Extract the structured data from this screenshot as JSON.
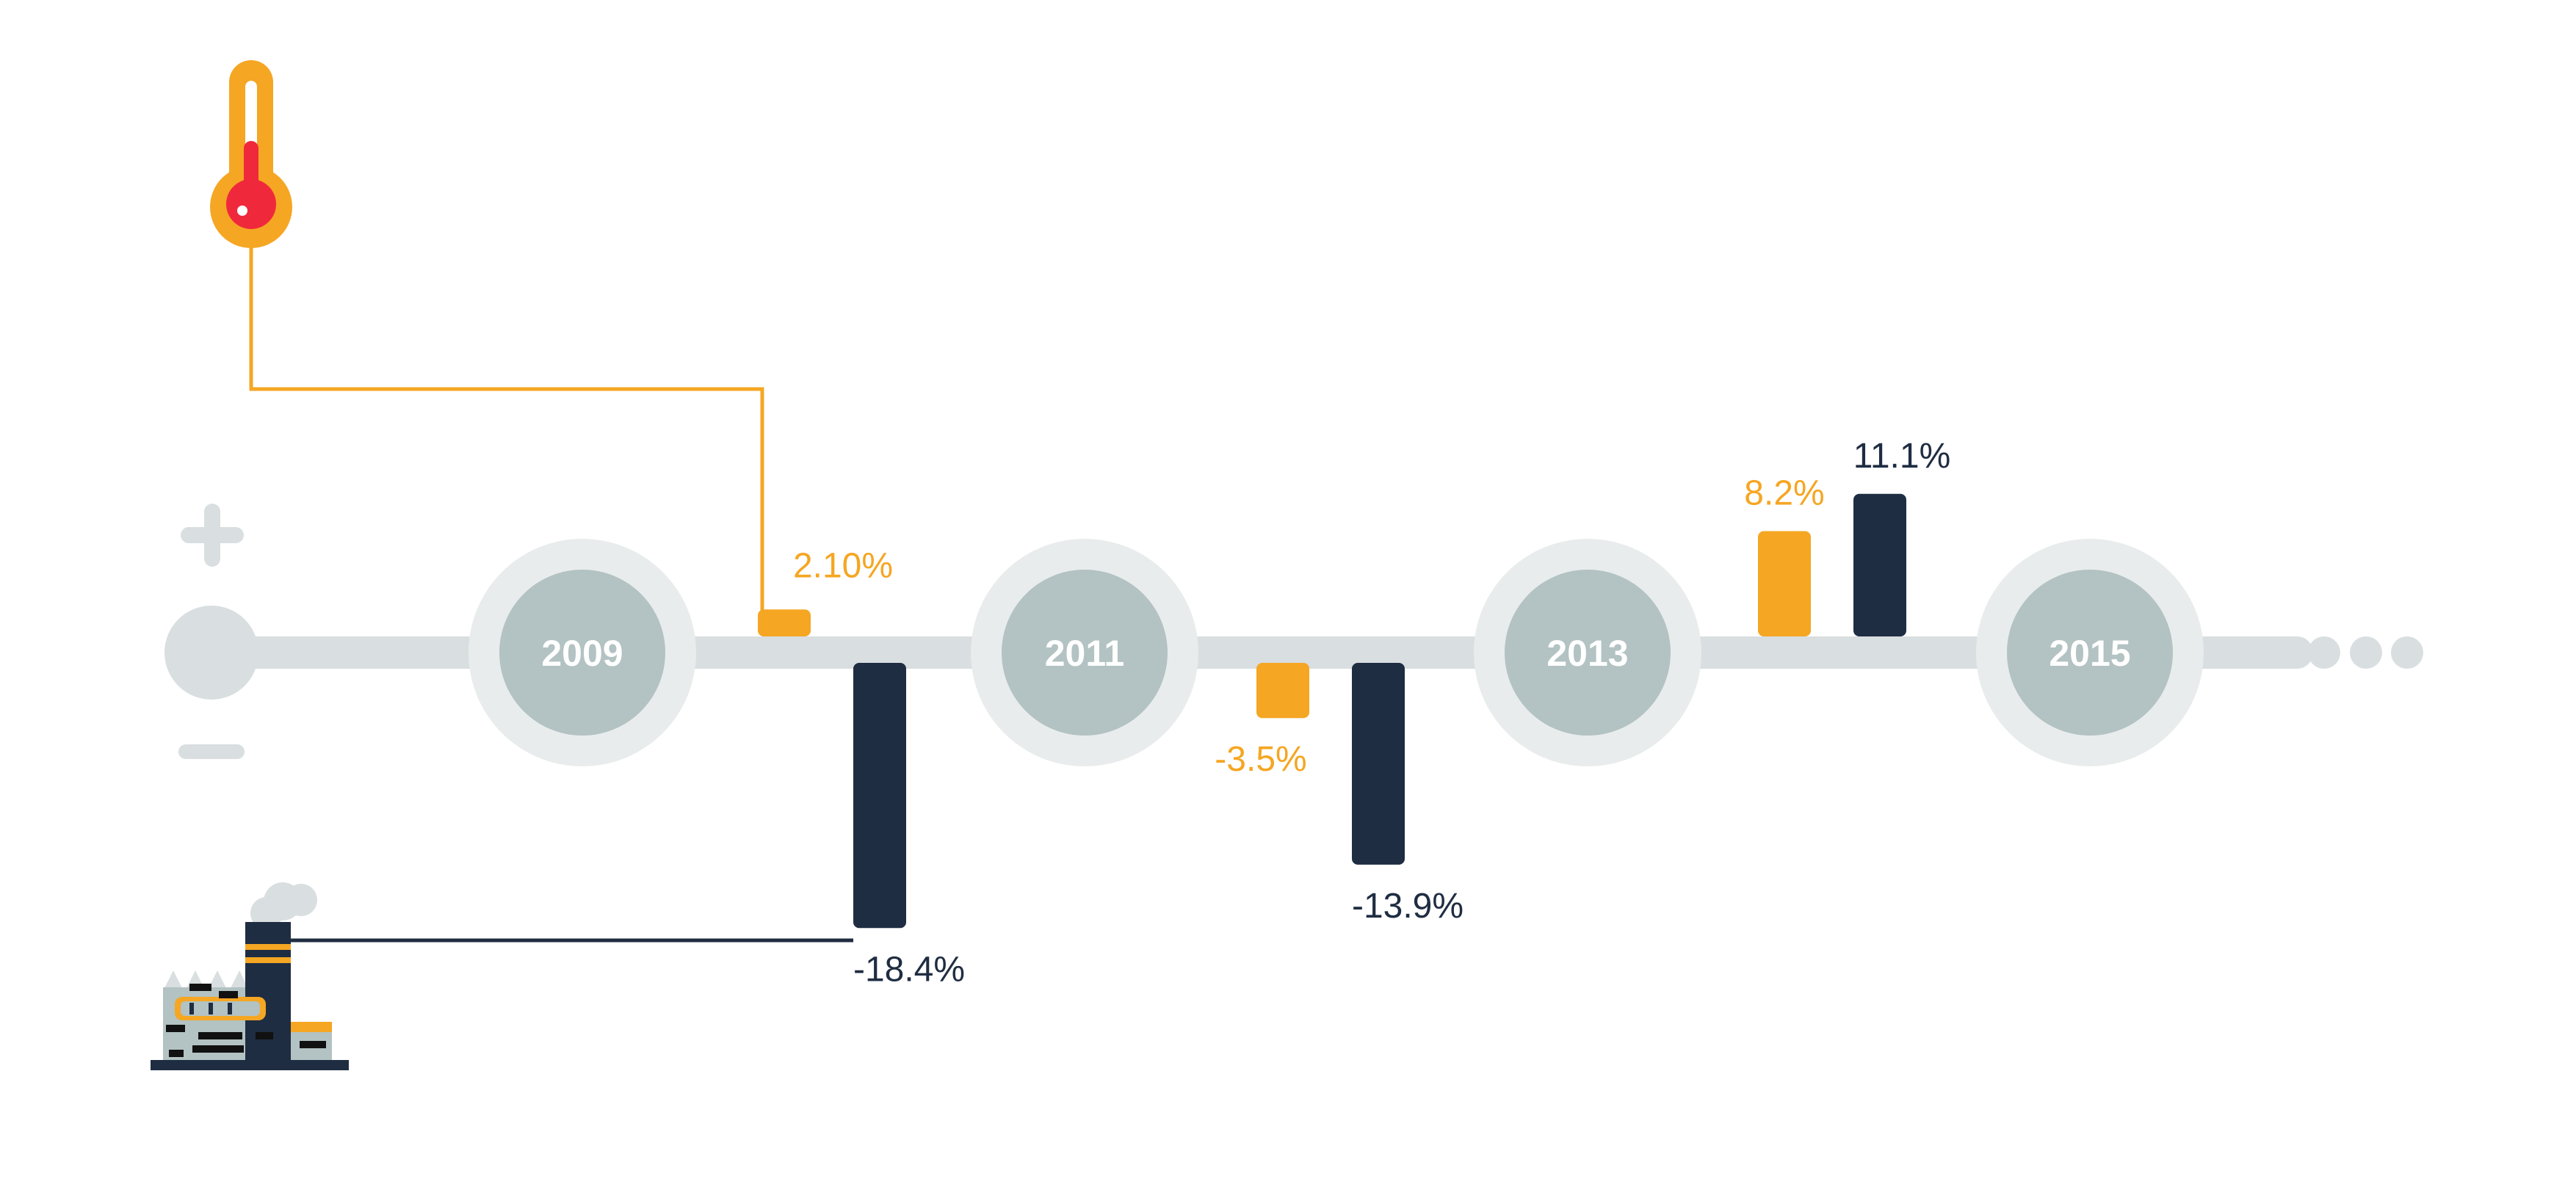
{
  "colors": {
    "orange": "#F5A623",
    "navy": "#1F2D42",
    "track": "#D9DEE0",
    "ring_outer": "#E9ECEC",
    "ring_inner": "#B3C2C2",
    "thermometer_red": "#F0283C"
  },
  "icons": {
    "thermometer": "thermometer-icon",
    "factory": "factory-icon",
    "plus": "plus-icon",
    "minus": "minus-icon"
  },
  "chart_data": {
    "type": "bar",
    "title": "",
    "xlabel": "",
    "ylabel": "",
    "years": [
      "2009",
      "2011",
      "2013",
      "2015"
    ],
    "series": [
      {
        "icon": "thermometer-icon",
        "color": "#F5A623",
        "points": [
          {
            "x": "2010",
            "value": 2.1,
            "label": "2.10%"
          },
          {
            "x": "2012",
            "value": -3.5,
            "label": "-3.5%"
          },
          {
            "x": "2014",
            "value": 8.2,
            "label": "8.2%"
          }
        ]
      },
      {
        "icon": "factory-icon",
        "color": "#1F2D42",
        "points": [
          {
            "x": "2010",
            "value": -18.4,
            "label": "-18.4%"
          },
          {
            "x": "2012",
            "value": -13.9,
            "label": "-13.9%"
          },
          {
            "x": "2014",
            "value": 11.1,
            "label": "11.1%"
          }
        ]
      }
    ]
  }
}
